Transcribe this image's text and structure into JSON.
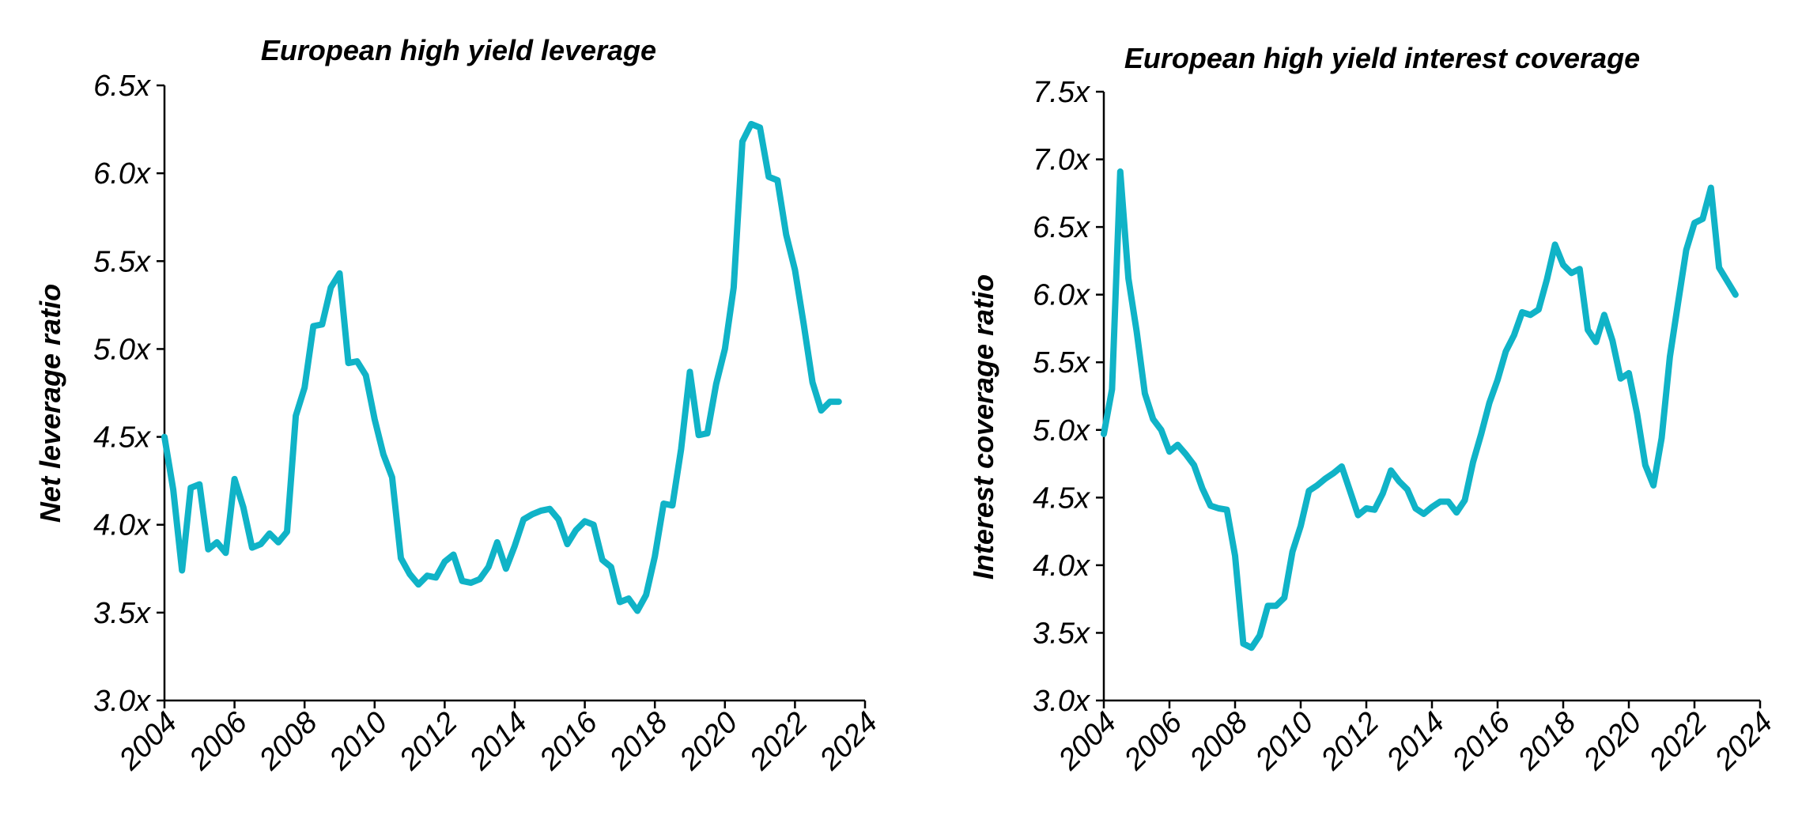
{
  "chart_data": [
    {
      "type": "line",
      "title": "European high yield leverage",
      "xlabel": "",
      "ylabel": "Net leverage ratio",
      "xlim": [
        2004,
        2024
      ],
      "ylim": [
        3.0,
        6.5
      ],
      "x_ticks": [
        "2004",
        "2006",
        "2008",
        "2010",
        "2012",
        "2014",
        "2016",
        "2018",
        "2020",
        "2022",
        "2024"
      ],
      "y_ticks": [
        "3.0x",
        "3.5x",
        "4.0x",
        "4.5x",
        "5.0x",
        "5.5x",
        "6.0x",
        "6.5x"
      ],
      "grid": false,
      "color": "#10B3C7",
      "series": [
        {
          "x": [
            2004.0,
            2004.25,
            2004.5,
            2004.75,
            2005.0,
            2005.25,
            2005.5,
            2005.75,
            2006.0,
            2006.25,
            2006.5,
            2006.75,
            2007.0,
            2007.25,
            2007.5,
            2007.75,
            2008.0,
            2008.25,
            2008.5,
            2008.75,
            2009.0,
            2009.25,
            2009.5,
            2009.75,
            2010.0,
            2010.25,
            2010.5,
            2010.75,
            2011.0,
            2011.25,
            2011.5,
            2011.75,
            2012.0,
            2012.25,
            2012.5,
            2012.75,
            2013.0,
            2013.25,
            2013.5,
            2013.75,
            2014.0,
            2014.25,
            2014.5,
            2014.75,
            2015.0,
            2015.25,
            2015.5,
            2015.75,
            2016.0,
            2016.25,
            2016.5,
            2016.75,
            2017.0,
            2017.25,
            2017.5,
            2017.75,
            2018.0,
            2018.25,
            2018.5,
            2018.75,
            2019.0,
            2019.25,
            2019.5,
            2019.75,
            2020.0,
            2020.25,
            2020.5,
            2020.75,
            2021.0,
            2021.25,
            2021.5,
            2021.75,
            2022.0,
            2022.25,
            2022.5,
            2022.75,
            2023.0,
            2023.25
          ],
          "values": [
            4.5,
            4.2,
            3.74,
            4.21,
            4.23,
            3.86,
            3.9,
            3.84,
            4.26,
            4.1,
            3.87,
            3.89,
            3.95,
            3.9,
            3.96,
            4.62,
            4.78,
            5.13,
            5.14,
            5.35,
            5.43,
            4.92,
            4.93,
            4.85,
            4.6,
            4.4,
            4.27,
            3.81,
            3.72,
            3.66,
            3.71,
            3.7,
            3.79,
            3.83,
            3.68,
            3.67,
            3.69,
            3.76,
            3.9,
            3.75,
            3.88,
            4.03,
            4.06,
            4.08,
            4.09,
            4.03,
            3.89,
            3.97,
            4.02,
            4.0,
            3.8,
            3.76,
            3.56,
            3.58,
            3.51,
            3.6,
            3.82,
            4.12,
            4.11,
            4.43,
            4.87,
            4.51,
            4.52,
            4.8,
            5.0,
            5.35,
            6.18,
            6.28,
            6.26,
            5.98,
            5.96,
            5.65,
            5.45,
            5.14,
            4.81,
            4.65,
            4.7,
            4.7
          ]
        }
      ]
    },
    {
      "type": "line",
      "title": "European high yield interest coverage",
      "xlabel": "",
      "ylabel": "Interest coverage ratio",
      "xlim": [
        2004,
        2024
      ],
      "ylim": [
        3.0,
        7.5
      ],
      "x_ticks": [
        "2004",
        "2006",
        "2008",
        "2010",
        "2012",
        "2014",
        "2016",
        "2018",
        "2020",
        "2022",
        "2024"
      ],
      "y_ticks": [
        "3.0x",
        "3.5x",
        "4.0x",
        "4.5x",
        "5.0x",
        "5.5x",
        "6.0x",
        "6.5x",
        "7.0x",
        "7.5x"
      ],
      "grid": false,
      "color": "#10B3C7",
      "series": [
        {
          "x": [
            2004.0,
            2004.25,
            2004.5,
            2004.75,
            2005.0,
            2005.25,
            2005.5,
            2005.75,
            2006.0,
            2006.25,
            2006.5,
            2006.75,
            2007.0,
            2007.25,
            2007.5,
            2007.75,
            2008.0,
            2008.25,
            2008.5,
            2008.75,
            2009.0,
            2009.25,
            2009.5,
            2009.75,
            2010.0,
            2010.25,
            2010.5,
            2010.75,
            2011.0,
            2011.25,
            2011.5,
            2011.75,
            2012.0,
            2012.25,
            2012.5,
            2012.75,
            2013.0,
            2013.25,
            2013.5,
            2013.75,
            2014.0,
            2014.25,
            2014.5,
            2014.75,
            2015.0,
            2015.25,
            2015.5,
            2015.75,
            2016.0,
            2016.25,
            2016.5,
            2016.75,
            2017.0,
            2017.25,
            2017.5,
            2017.75,
            2018.0,
            2018.25,
            2018.5,
            2018.75,
            2019.0,
            2019.25,
            2019.5,
            2019.75,
            2020.0,
            2020.25,
            2020.5,
            2020.75,
            2021.0,
            2021.25,
            2021.5,
            2021.75,
            2022.0,
            2022.25,
            2022.5,
            2022.75,
            2023.0,
            2023.25
          ],
          "values": [
            4.97,
            5.3,
            6.91,
            6.12,
            5.73,
            5.27,
            5.08,
            5.0,
            4.84,
            4.89,
            4.82,
            4.74,
            4.57,
            4.44,
            4.42,
            4.41,
            4.07,
            3.42,
            3.39,
            3.48,
            3.7,
            3.7,
            3.76,
            4.1,
            4.29,
            4.55,
            4.59,
            4.64,
            4.68,
            4.73,
            4.55,
            4.37,
            4.42,
            4.41,
            4.53,
            4.7,
            4.62,
            4.56,
            4.42,
            4.38,
            4.43,
            4.47,
            4.47,
            4.39,
            4.48,
            4.76,
            4.97,
            5.2,
            5.37,
            5.58,
            5.7,
            5.87,
            5.85,
            5.89,
            6.11,
            6.37,
            6.22,
            6.16,
            6.19,
            5.74,
            5.65,
            5.85,
            5.66,
            5.38,
            5.42,
            5.12,
            4.74,
            4.59,
            4.94,
            5.54,
            5.94,
            6.33,
            6.53,
            6.56,
            6.79,
            6.2,
            6.1,
            6.0
          ]
        }
      ]
    }
  ]
}
